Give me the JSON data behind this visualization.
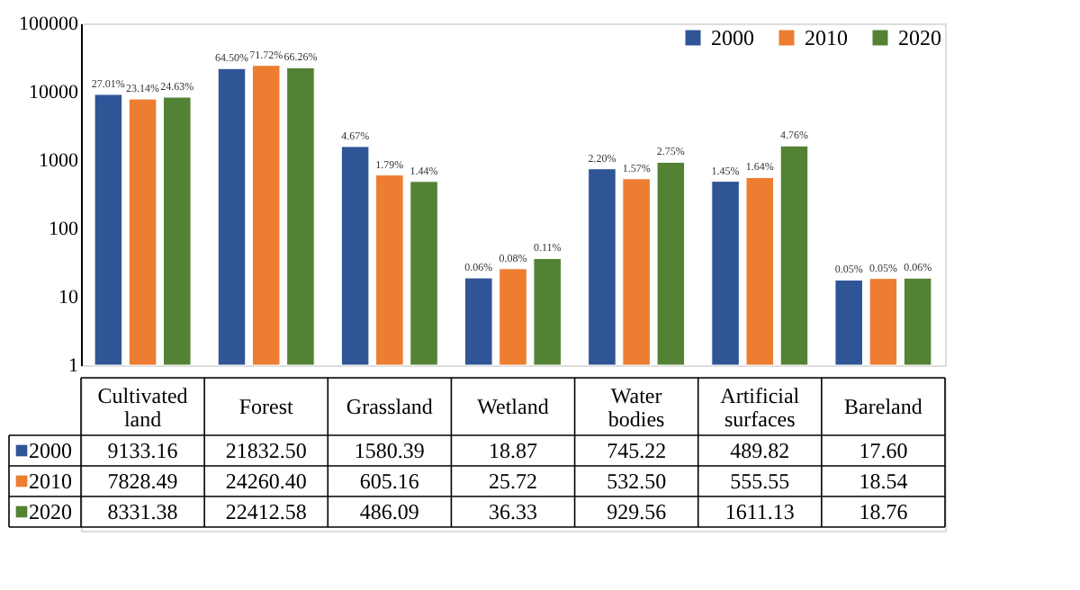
{
  "chart_data": {
    "type": "bar",
    "categories": [
      "Cultivated land",
      "Forest",
      "Grassland",
      "Wetland",
      "Water bodies",
      "Artificial surfaces",
      "Bareland"
    ],
    "series": [
      {
        "name": "2000",
        "color": "#2f5597",
        "values": [
          9133.16,
          21832.5,
          1580.39,
          18.87,
          745.22,
          489.82,
          17.6
        ],
        "value_labels": [
          "9133.16",
          "21832.50",
          "1580.39",
          "18.87",
          "745.22",
          "489.82",
          "17.60"
        ]
      },
      {
        "name": "2010",
        "color": "#ed7d31",
        "values": [
          7828.49,
          24260.4,
          605.16,
          25.72,
          532.5,
          555.55,
          18.54
        ],
        "value_labels": [
          "7828.49",
          "24260.40",
          "605.16",
          "25.72",
          "532.50",
          "555.55",
          "18.54"
        ]
      },
      {
        "name": "2020",
        "color": "#548235",
        "values": [
          8331.38,
          22412.58,
          486.09,
          36.33,
          929.56,
          1611.13,
          18.76
        ],
        "value_labels": [
          "8331.38",
          "22412.58",
          "486.09",
          "36.33",
          "929.56",
          "1611.13",
          "18.76"
        ]
      }
    ],
    "annotations": [
      "27.01%",
      "23.14%",
      "24.63%",
      "64.50%",
      "71.72%",
      "66.26%",
      "4.67%",
      "1.79%",
      "1.44%",
      "0.06%",
      "0.08%",
      "0.11%",
      "2.20%",
      "1.57%",
      "2.75%",
      "1.45%",
      "1.64%",
      "4.76%",
      "0.05%",
      "0.05%",
      "0.06%"
    ],
    "log": true,
    "ylim": [
      1,
      100000
    ],
    "yticks": [
      1,
      10,
      100,
      1000,
      10000,
      100000
    ],
    "grid": false,
    "legend": "top right"
  }
}
